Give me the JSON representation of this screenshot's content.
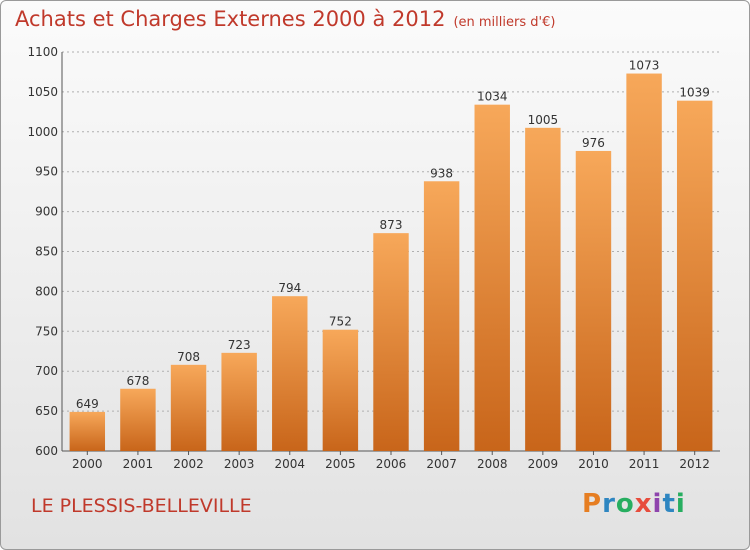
{
  "title": "Achats et Charges Externes 2000 à 2012",
  "subtitle": "(en milliers d'€)",
  "location": "LE PLESSIS-BELLEVILLE",
  "brand": {
    "letters": [
      "P",
      "r",
      "o",
      "x",
      "i",
      "t",
      "i"
    ],
    "colors": [
      "#e67e22",
      "#2e86c1",
      "#27ae60",
      "#e74c3c",
      "#8e44ad",
      "#2e86c1",
      "#27ae60"
    ]
  },
  "colors": {
    "bar_top": "#f7a85a",
    "bar_bottom": "#c8651a",
    "text": "#c0392b",
    "grid": "#b0b0b0"
  },
  "chart_data": {
    "type": "bar",
    "categories": [
      "2000",
      "2001",
      "2002",
      "2003",
      "2004",
      "2005",
      "2006",
      "2007",
      "2008",
      "2009",
      "2010",
      "2011",
      "2012"
    ],
    "values": [
      649,
      678,
      708,
      723,
      794,
      752,
      873,
      938,
      1034,
      1005,
      976,
      1073,
      1039
    ],
    "ylim": [
      600,
      1100
    ],
    "yticks": [
      600,
      650,
      700,
      750,
      800,
      850,
      900,
      950,
      1000,
      1050,
      1100
    ],
    "grid": true,
    "legend": "none"
  }
}
